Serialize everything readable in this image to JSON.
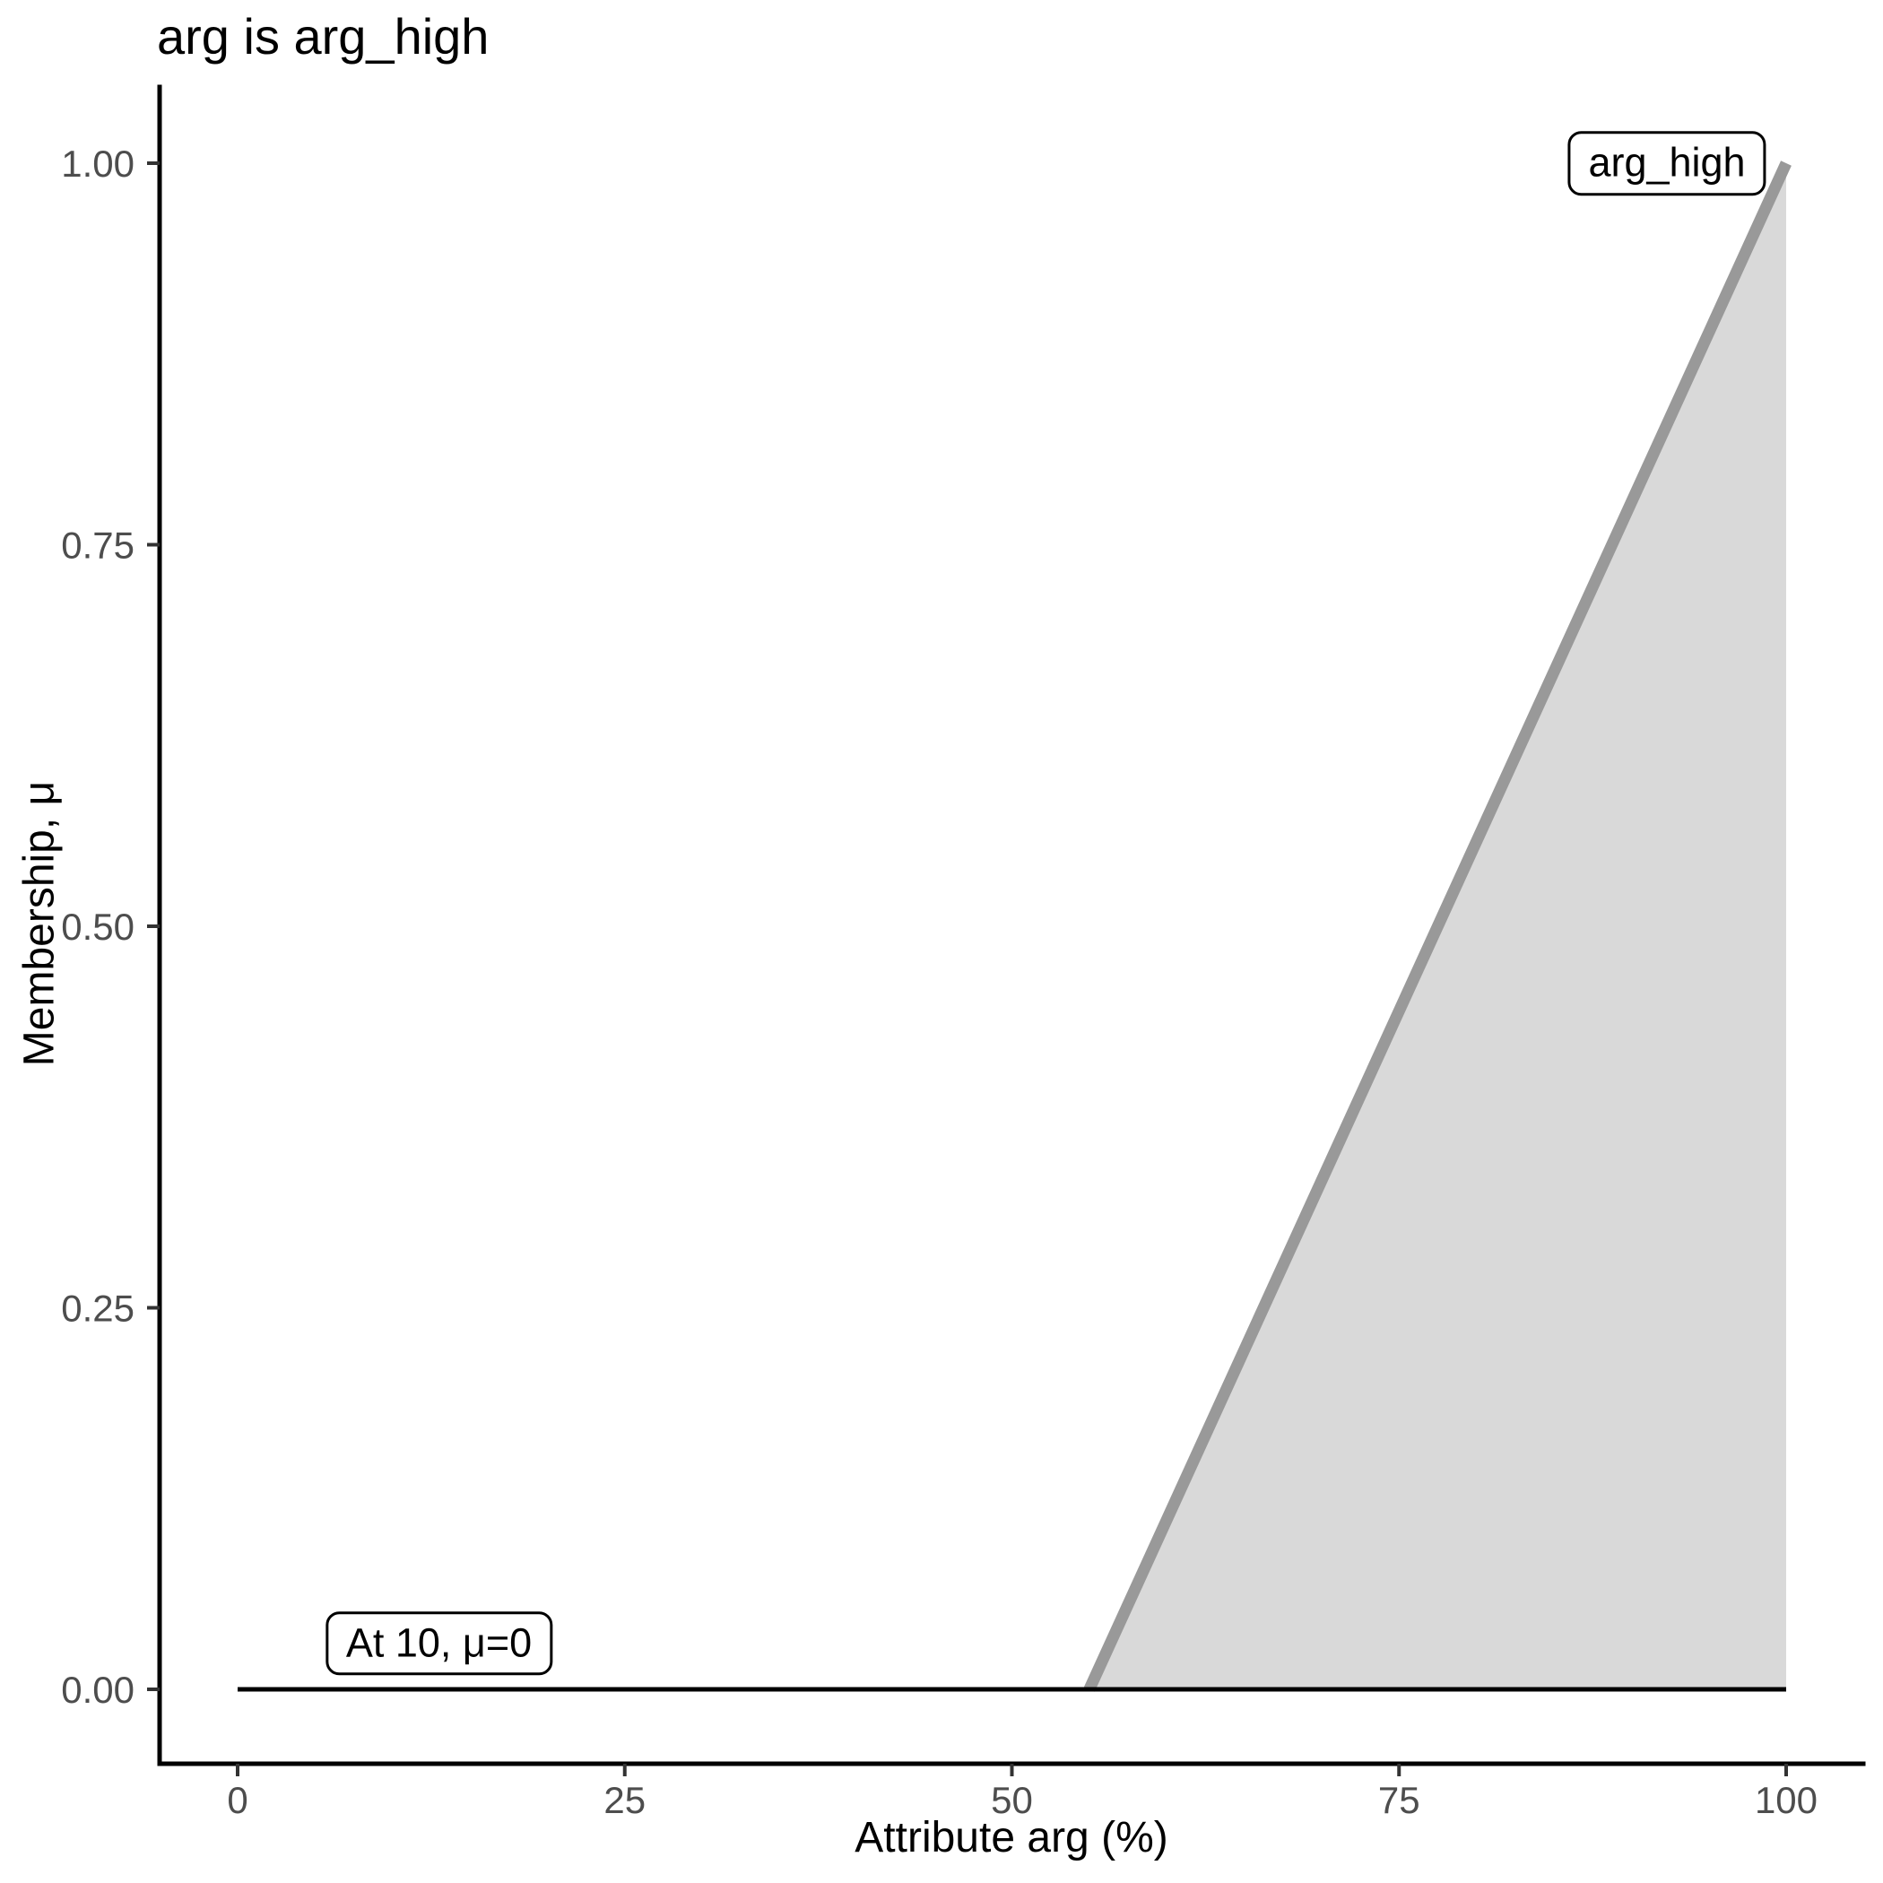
{
  "chart_data": {
    "type": "area",
    "title": "arg is arg_high",
    "xlabel": "Attribute arg (%)",
    "ylabel": "Membership, μ",
    "xlim": [
      0,
      100
    ],
    "ylim": [
      0,
      1
    ],
    "grid": false,
    "legend": "none",
    "x_ticks": {
      "values": [
        0,
        25,
        50,
        75,
        100
      ],
      "labels": [
        "0",
        "25",
        "50",
        "75",
        "100"
      ]
    },
    "y_ticks": {
      "values": [
        0,
        0.25,
        0.5,
        0.75,
        1
      ],
      "labels": [
        "0.00",
        "0.25",
        "0.50",
        "0.75",
        "1.00"
      ]
    },
    "series": [
      {
        "name": "mu-zero-baseline",
        "type": "line",
        "points": [
          [
            0,
            0
          ],
          [
            100,
            0
          ]
        ],
        "color": "#000000",
        "stroke_width": 5
      },
      {
        "name": "arg_high-membership-ramp",
        "type": "area",
        "points": [
          [
            55,
            0
          ],
          [
            100,
            1
          ]
        ],
        "baseline_y": 0,
        "line_color": "#999999",
        "fill_color": "#D9D9D9",
        "stroke_width": 13
      }
    ],
    "annotations": [
      {
        "text": "arg_high",
        "x": 92.3,
        "y": 1.0
      },
      {
        "text": "At 10, μ=0",
        "x": 13,
        "y": 0.03
      }
    ],
    "colors": {
      "background": "#FFFFFF",
      "axis_line": "#000000",
      "tick_mark": "#333333",
      "tick_label": "#4D4D4D",
      "title_text": "#000000",
      "axis_title_text": "#000000",
      "annotation_text": "#000000",
      "annotation_border": "#000000",
      "annotation_fill": "#FFFFFF"
    }
  }
}
